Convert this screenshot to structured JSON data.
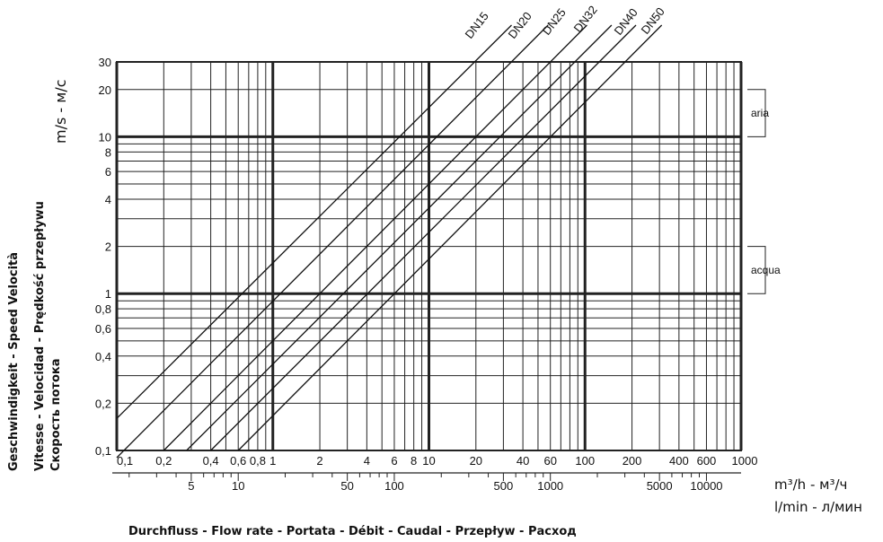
{
  "chart_data": {
    "type": "line",
    "x_scale": "log",
    "y_scale": "log",
    "xlim": [
      0.1,
      1000
    ],
    "ylim": [
      0.1,
      30
    ],
    "grid": true,
    "x_ticks_m3h": [
      "0,1",
      "0,2",
      "0,4",
      "0,6",
      "0,8",
      "1",
      "2",
      "4",
      "6",
      "8",
      "10",
      "20",
      "40",
      "60",
      "100",
      "200",
      "400",
      "600",
      "1000"
    ],
    "x_tick_values_m3h": [
      0.1,
      0.2,
      0.4,
      0.6,
      0.8,
      1,
      2,
      4,
      6,
      8,
      10,
      20,
      40,
      60,
      100,
      200,
      400,
      600,
      1000
    ],
    "x_ticks_lmin": [
      "5",
      "10",
      "50",
      "100",
      "500",
      "1000",
      "5000",
      "10000"
    ],
    "x_tick_values_lmin": [
      5,
      10,
      50,
      100,
      500,
      1000,
      5000,
      10000
    ],
    "y_ticks": [
      "30",
      "20",
      "10",
      "8",
      "6",
      "4",
      "2",
      "1",
      "0,8",
      "0,6",
      "0,4",
      "0,2",
      "0,1"
    ],
    "y_tick_values": [
      30,
      20,
      10,
      8,
      6,
      4,
      2,
      1,
      0.8,
      0.6,
      0.4,
      0.2,
      0.1
    ],
    "series": [
      {
        "name": "DN15",
        "x": [
          0.1,
          5.5
        ],
        "y": [
          0.16,
          8.5
        ]
      },
      {
        "name": "DN20",
        "x": [
          0.1,
          11
        ],
        "y": [
          0.09,
          9.8
        ]
      },
      {
        "name": "DN25",
        "x": [
          0.2,
          20
        ],
        "y": [
          0.1,
          10
        ]
      },
      {
        "name": "DN32",
        "x": [
          0.28,
          30
        ],
        "y": [
          0.1,
          10.5
        ]
      },
      {
        "name": "DN40",
        "x": [
          0.4,
          45
        ],
        "y": [
          0.1,
          11
        ]
      },
      {
        "name": "DN50",
        "x": [
          0.6,
          65
        ],
        "y": [
          0.1,
          10.8
        ]
      }
    ],
    "brackets": [
      {
        "label": "aria",
        "range": [
          10,
          20
        ]
      },
      {
        "label": "acqua",
        "range": [
          1,
          2
        ]
      }
    ]
  },
  "axis": {
    "y_unit": "m/s - м/с",
    "y_label_1": "Geschwindigkeit - Speed Velocità",
    "y_label_2": "Vitesse - Velocidad - Prędkość przepływu",
    "y_label_3": "Скорость потока",
    "x_unit_1": "m³/h - м³/ч",
    "x_unit_2": "l/min - л/мин",
    "x_title": "Durchfluss - Flow rate - Portata - Débit - Caudal - Przepływ - Расход"
  },
  "colors": {
    "line": "#111111",
    "grid": "#222222",
    "background": "#ffffff"
  }
}
